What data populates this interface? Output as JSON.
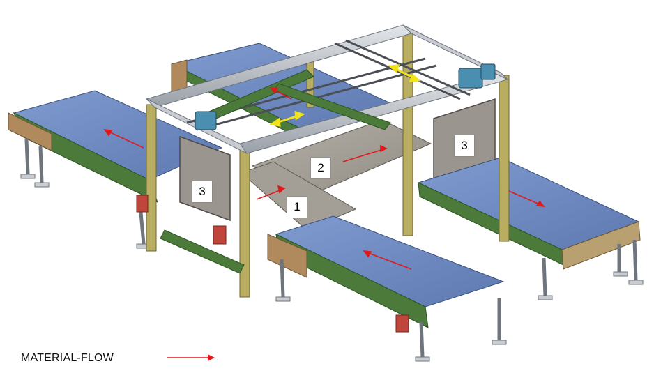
{
  "callouts": {
    "transfer_cart": "1",
    "buffer_zone": "2",
    "pusher_left": "3",
    "pusher_right": "3"
  },
  "legend": {
    "label": "MATERIAL-FLOW",
    "arrow_color": "#e0191b"
  },
  "colors": {
    "belt": "#6e8bc2",
    "belt_dark": "#4f6aa0",
    "frame": "#4b7a3b",
    "frame_dark": "#2e5424",
    "gantry": "#c8ccd2",
    "gantry_dark": "#8d939b",
    "post": "#b8ad60",
    "end_cap": "#b08a5c",
    "pusher": "#9a958e",
    "platform": "#a7a29b",
    "motor": "#4a8fb0",
    "flow_arrow": "#e0191b",
    "shuttle_arrow": "#f2e21a"
  }
}
